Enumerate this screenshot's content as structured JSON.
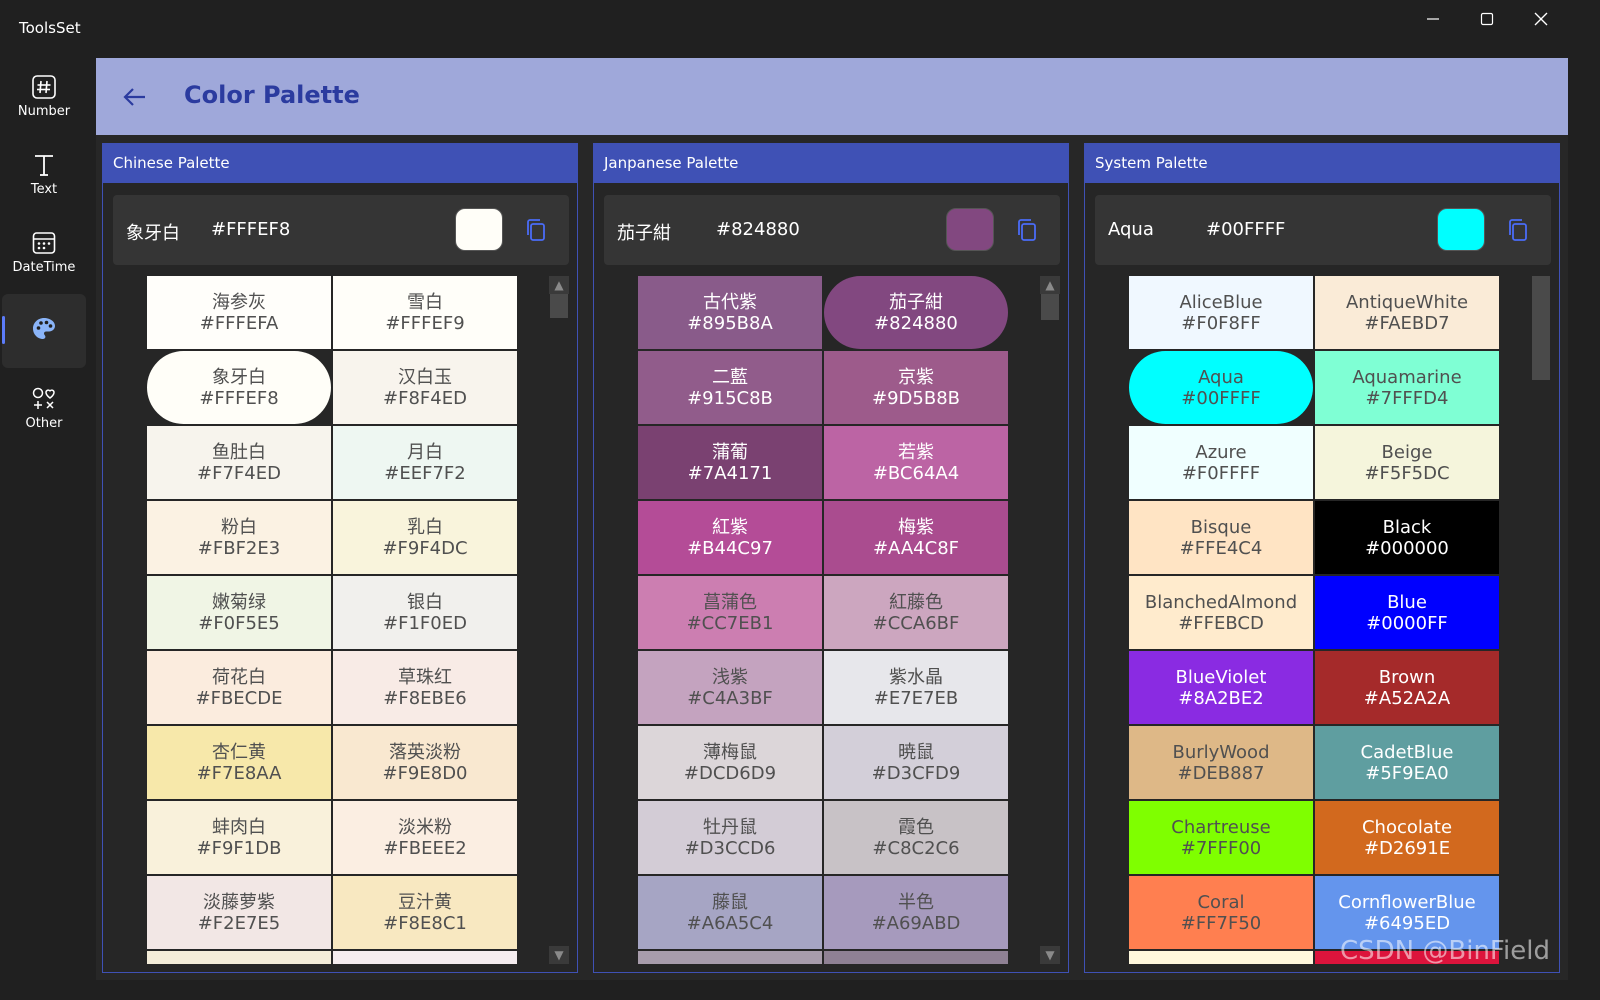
{
  "app": {
    "title": "ToolsSet"
  },
  "window_controls": {
    "minimize_icon": "minimize-icon",
    "maximize_icon": "maximize-icon",
    "close_icon": "close-icon"
  },
  "nav": [
    {
      "label": "Number",
      "icon": "hash-icon",
      "active": false
    },
    {
      "label": "Text",
      "icon": "text-icon",
      "active": false
    },
    {
      "label": "DateTime",
      "icon": "calendar-icon",
      "active": false
    },
    {
      "label": "",
      "icon": "palette-icon",
      "active": true
    },
    {
      "label": "Other",
      "icon": "shapes-icon",
      "active": false
    }
  ],
  "header": {
    "title": "Color Palette",
    "back_icon": "arrow-left-icon"
  },
  "colors": {
    "accent": "#3F51B5",
    "header_bg": "#9FA8DA",
    "title_color": "#2B3B9F"
  },
  "panels": {
    "chinese": {
      "title": "Chinese Palette",
      "selected": {
        "name": "象牙白",
        "hex": "#FFFEF8"
      },
      "colors": [
        {
          "name": "海参灰",
          "hex": "#FFFEFA"
        },
        {
          "name": "雪白",
          "hex": "#FFFEF9"
        },
        {
          "name": "象牙白",
          "hex": "#FFFEF8",
          "selected": true
        },
        {
          "name": "汉白玉",
          "hex": "#F8F4ED"
        },
        {
          "name": "鱼肚白",
          "hex": "#F7F4ED"
        },
        {
          "name": "月白",
          "hex": "#EEF7F2"
        },
        {
          "name": "粉白",
          "hex": "#FBF2E3"
        },
        {
          "name": "乳白",
          "hex": "#F9F4DC"
        },
        {
          "name": "嫩菊绿",
          "hex": "#F0F5E5"
        },
        {
          "name": "银白",
          "hex": "#F1F0ED"
        },
        {
          "name": "荷花白",
          "hex": "#FBECDE"
        },
        {
          "name": "草珠红",
          "hex": "#F8EBE6"
        },
        {
          "name": "杏仁黄",
          "hex": "#F7E8AA"
        },
        {
          "name": "落英淡粉",
          "hex": "#F9E8D0"
        },
        {
          "name": "蚌肉白",
          "hex": "#F9F1DB"
        },
        {
          "name": "淡米粉",
          "hex": "#FBEEE2"
        },
        {
          "name": "淡藤萝紫",
          "hex": "#F2E7E5"
        },
        {
          "name": "豆汁黄",
          "hex": "#F8E8C1"
        },
        {
          "name": "",
          "hex": "",
          "swatch": "#F4EDD9"
        },
        {
          "name": "",
          "hex": "",
          "swatch": "#F5EDEF"
        }
      ]
    },
    "japanese": {
      "title": "Janpanese Palette",
      "selected": {
        "name": "茄子紺",
        "hex": "#824880"
      },
      "colors": [
        {
          "name": "古代紫",
          "hex": "#895B8A"
        },
        {
          "name": "茄子紺",
          "hex": "#824880",
          "selected": true
        },
        {
          "name": "二藍",
          "hex": "#915C8B"
        },
        {
          "name": "京紫",
          "hex": "#9D5B8B"
        },
        {
          "name": "蒲葡",
          "hex": "#7A4171"
        },
        {
          "name": "若紫",
          "hex": "#BC64A4"
        },
        {
          "name": "紅紫",
          "hex": "#B44C97"
        },
        {
          "name": "梅紫",
          "hex": "#AA4C8F"
        },
        {
          "name": "菖蒲色",
          "hex": "#CC7EB1"
        },
        {
          "name": "紅藤色",
          "hex": "#CCA6BF"
        },
        {
          "name": "浅紫",
          "hex": "#C4A3BF"
        },
        {
          "name": "紫水晶",
          "hex": "#E7E7EB"
        },
        {
          "name": "薄梅鼠",
          "hex": "#DCD6D9"
        },
        {
          "name": "暁鼠",
          "hex": "#D3CFD9"
        },
        {
          "name": "牡丹鼠",
          "hex": "#D3CCD6"
        },
        {
          "name": "霞色",
          "hex": "#C8C2C6"
        },
        {
          "name": "藤鼠",
          "hex": "#A6A5C4"
        },
        {
          "name": "半色",
          "hex": "#A69ABD"
        },
        {
          "name": "",
          "hex": "",
          "swatch": "#A89DAC"
        },
        {
          "name": "",
          "hex": "",
          "swatch": "#8F8194"
        }
      ]
    },
    "system": {
      "title": "System Palette",
      "selected": {
        "name": "Aqua",
        "hex": "#00FFFF"
      },
      "colors": [
        {
          "name": "AliceBlue",
          "hex": "#F0F8FF"
        },
        {
          "name": "AntiqueWhite",
          "hex": "#FAEBD7"
        },
        {
          "name": "Aqua",
          "hex": "#00FFFF",
          "selected": true
        },
        {
          "name": "Aquamarine",
          "hex": "#7FFFD4"
        },
        {
          "name": "Azure",
          "hex": "#F0FFFF"
        },
        {
          "name": "Beige",
          "hex": "#F5F5DC"
        },
        {
          "name": "Bisque",
          "hex": "#FFE4C4"
        },
        {
          "name": "Black",
          "hex": "#000000"
        },
        {
          "name": "BlanchedAlmond",
          "hex": "#FFEBCD"
        },
        {
          "name": "Blue",
          "hex": "#0000FF"
        },
        {
          "name": "BlueViolet",
          "hex": "#8A2BE2"
        },
        {
          "name": "Brown",
          "hex": "#A52A2A"
        },
        {
          "name": "BurlyWood",
          "hex": "#DEB887"
        },
        {
          "name": "CadetBlue",
          "hex": "#5F9EA0"
        },
        {
          "name": "Chartreuse",
          "hex": "#7FFF00"
        },
        {
          "name": "Chocolate",
          "hex": "#D2691E"
        },
        {
          "name": "Coral",
          "hex": "#FF7F50"
        },
        {
          "name": "CornflowerBlue",
          "hex": "#6495ED"
        },
        {
          "name": "",
          "hex": "",
          "swatch": "#FFF8DC"
        },
        {
          "name": "",
          "hex": "",
          "swatch": "#DC143C"
        }
      ]
    }
  },
  "watermark": "CSDN @BinField"
}
